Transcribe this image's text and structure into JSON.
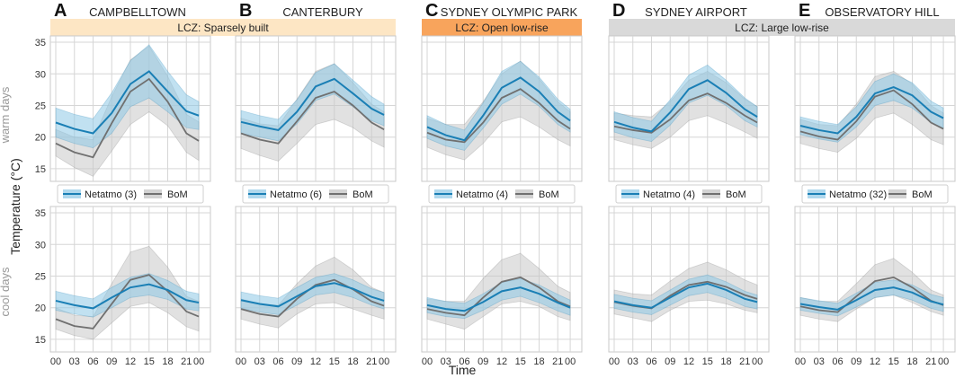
{
  "figure": {
    "y_axis_title": "Temperature (°C)",
    "x_axis_title": "Time",
    "row_labels": [
      "warm days",
      "cool days"
    ],
    "bom_label": "BoM",
    "lcz_bands": [
      {
        "label": "LCZ: Sparsely built",
        "panels": [
          0,
          1
        ],
        "color": "#fde6c4"
      },
      {
        "label": "LCZ: Open low-rise",
        "panels": [
          2
        ],
        "color": "#f8a45c"
      },
      {
        "label": "LCZ: Large low-rise",
        "panels": [
          3,
          4
        ],
        "color": "#d9d9d9"
      }
    ],
    "colors": {
      "netatmo": "#1a7fb5",
      "netatmo_band": "#8ec8e6",
      "bom": "#707070",
      "bom_band": "#c8c8c8",
      "grid": "#d6d6d6"
    }
  },
  "chart_data": [
    {
      "type": "line",
      "panel": "A",
      "title": "CAMPBELLTOWN",
      "netatmo_label": "Netatmo (3)",
      "x": [
        0,
        3,
        6,
        9,
        12,
        15,
        18,
        21,
        23
      ],
      "xticks": [
        "00",
        "03",
        "06",
        "09",
        "12",
        "15",
        "18",
        "21",
        "00"
      ],
      "warm": {
        "ylim": [
          13,
          36
        ],
        "yticks": [
          15,
          20,
          25,
          30,
          35
        ],
        "netatmo": {
          "mean": [
            22.3,
            21.3,
            20.6,
            23.8,
            28.4,
            30.4,
            27.2,
            24.1,
            23.4
          ],
          "lower": [
            20.0,
            19.0,
            18.3,
            20.6,
            24.8,
            26.2,
            24.0,
            21.5,
            21.2
          ],
          "upper": [
            24.6,
            23.6,
            22.9,
            27.0,
            32.1,
            34.6,
            30.4,
            26.7,
            25.6
          ]
        },
        "bom": {
          "mean": [
            19.0,
            17.6,
            16.8,
            22.2,
            27.2,
            29.2,
            25.6,
            20.6,
            19.4
          ],
          "lower": [
            17.0,
            15.2,
            13.8,
            17.8,
            22.0,
            24.0,
            21.8,
            17.6,
            16.3
          ],
          "upper": [
            21.2,
            20.0,
            19.6,
            26.4,
            32.2,
            34.4,
            29.6,
            23.6,
            22.4
          ]
        }
      },
      "cool": {
        "ylim": [
          13,
          36
        ],
        "yticks": [
          15,
          20,
          25,
          30,
          35
        ],
        "netatmo": {
          "mean": [
            21.1,
            20.4,
            19.9,
            21.6,
            23.2,
            23.7,
            22.8,
            21.2,
            20.8
          ],
          "lower": [
            19.6,
            19.0,
            18.5,
            20.0,
            21.6,
            22.0,
            21.3,
            19.8,
            19.5
          ],
          "upper": [
            22.6,
            21.9,
            21.4,
            23.2,
            24.8,
            25.4,
            24.3,
            22.6,
            22.2
          ]
        },
        "bom": {
          "mean": [
            18.2,
            17.1,
            16.7,
            20.6,
            24.4,
            25.2,
            22.6,
            19.4,
            18.6
          ],
          "lower": [
            16.6,
            15.6,
            15.0,
            17.6,
            20.2,
            20.8,
            19.2,
            17.0,
            16.3
          ],
          "upper": [
            20.0,
            18.8,
            18.6,
            23.8,
            28.8,
            29.7,
            26.4,
            21.8,
            21.0
          ]
        }
      }
    },
    {
      "type": "line",
      "panel": "B",
      "title": "CANTERBURY",
      "netatmo_label": "Netatmo (6)",
      "x": [
        0,
        3,
        6,
        9,
        12,
        15,
        18,
        21,
        23
      ],
      "xticks": [
        "00",
        "03",
        "06",
        "09",
        "12",
        "15",
        "18",
        "21",
        "00"
      ],
      "warm": {
        "ylim": [
          13,
          36
        ],
        "yticks": [
          15,
          20,
          25,
          30,
          35
        ],
        "netatmo": {
          "mean": [
            22.4,
            21.7,
            21.1,
            24.0,
            28.0,
            29.2,
            26.9,
            24.5,
            23.5
          ],
          "lower": [
            20.6,
            20.0,
            19.4,
            22.1,
            25.8,
            26.8,
            24.8,
            22.6,
            21.8
          ],
          "upper": [
            24.2,
            23.4,
            22.8,
            25.9,
            30.2,
            31.6,
            29.0,
            26.4,
            25.2
          ]
        },
        "bom": {
          "mean": [
            20.6,
            19.6,
            19.0,
            22.5,
            26.2,
            27.2,
            25.0,
            22.3,
            21.2
          ],
          "lower": [
            18.2,
            17.1,
            16.2,
            19.0,
            22.0,
            22.8,
            21.5,
            19.4,
            18.4
          ],
          "upper": [
            23.0,
            22.1,
            21.8,
            26.0,
            30.4,
            31.6,
            28.6,
            25.2,
            24.0
          ]
        }
      },
      "cool": {
        "ylim": [
          13,
          36
        ],
        "yticks": [
          15,
          20,
          25,
          30,
          35
        ],
        "netatmo": {
          "mean": [
            21.2,
            20.6,
            20.2,
            21.8,
            23.4,
            23.9,
            23.0,
            21.7,
            21.1
          ],
          "lower": [
            19.9,
            19.3,
            18.9,
            20.4,
            22.0,
            22.4,
            21.6,
            20.4,
            19.8
          ],
          "upper": [
            22.5,
            21.9,
            21.5,
            23.2,
            24.8,
            25.4,
            24.4,
            23.0,
            22.4
          ]
        },
        "bom": {
          "mean": [
            19.8,
            19.0,
            18.6,
            21.4,
            23.6,
            24.4,
            22.9,
            21.0,
            20.3
          ],
          "lower": [
            18.2,
            17.4,
            16.8,
            19.0,
            20.6,
            20.8,
            19.8,
            18.8,
            18.2
          ],
          "upper": [
            21.4,
            20.6,
            20.4,
            23.8,
            26.6,
            28.0,
            26.0,
            23.2,
            22.4
          ]
        }
      }
    },
    {
      "type": "line",
      "panel": "C",
      "title": "SYDNEY OLYMPIC PARK",
      "netatmo_label": "Netatmo (4)",
      "x": [
        0,
        3,
        6,
        9,
        12,
        15,
        18,
        21,
        23
      ],
      "xticks": [
        "00",
        "03",
        "06",
        "09",
        "12",
        "15",
        "18",
        "21",
        "00"
      ],
      "warm": {
        "ylim": [
          13,
          36
        ],
        "yticks": [
          15,
          20,
          25,
          30,
          35
        ],
        "netatmo": {
          "mean": [
            21.6,
            20.3,
            19.5,
            23.4,
            27.8,
            29.4,
            27.2,
            24.0,
            22.6
          ],
          "lower": [
            19.8,
            18.6,
            17.9,
            21.4,
            25.2,
            26.8,
            24.9,
            22.0,
            20.8
          ],
          "upper": [
            23.4,
            22.0,
            21.1,
            25.4,
            30.4,
            32.0,
            29.5,
            26.0,
            24.4
          ]
        },
        "bom": {
          "mean": [
            20.7,
            19.6,
            19.2,
            22.3,
            26.2,
            27.6,
            25.4,
            22.6,
            21.3
          ],
          "lower": [
            18.4,
            17.2,
            16.4,
            19.0,
            22.4,
            23.2,
            21.6,
            19.6,
            18.6
          ],
          "upper": [
            23.0,
            22.0,
            22.0,
            25.6,
            30.0,
            32.0,
            29.2,
            25.6,
            24.0
          ]
        }
      },
      "cool": {
        "ylim": [
          13,
          36
        ],
        "yticks": [
          15,
          20,
          25,
          30,
          35
        ],
        "netatmo": {
          "mean": [
            20.4,
            19.8,
            19.5,
            20.9,
            22.6,
            23.2,
            22.2,
            20.8,
            20.0
          ],
          "lower": [
            19.2,
            18.6,
            18.3,
            19.6,
            21.2,
            21.8,
            20.8,
            19.5,
            18.8
          ],
          "upper": [
            21.6,
            21.0,
            20.7,
            22.2,
            24.0,
            24.6,
            23.6,
            22.1,
            21.2
          ]
        },
        "bom": {
          "mean": [
            19.8,
            19.2,
            18.8,
            21.6,
            24.1,
            24.8,
            23.2,
            21.0,
            20.2
          ],
          "lower": [
            18.2,
            17.4,
            16.6,
            18.6,
            20.6,
            21.0,
            20.2,
            18.6,
            18.0
          ],
          "upper": [
            21.4,
            21.0,
            21.0,
            24.6,
            27.6,
            28.6,
            26.2,
            23.4,
            22.4
          ]
        }
      }
    },
    {
      "type": "line",
      "panel": "D",
      "title": "SYDNEY AIRPORT",
      "netatmo_label": "Netatmo (4)",
      "x": [
        0,
        3,
        6,
        9,
        12,
        15,
        18,
        21,
        23
      ],
      "xticks": [
        "00",
        "03",
        "06",
        "09",
        "12",
        "15",
        "18",
        "21",
        "00"
      ],
      "warm": {
        "ylim": [
          13,
          36
        ],
        "yticks": [
          15,
          20,
          25,
          30,
          35
        ],
        "netatmo": {
          "mean": [
            22.4,
            21.5,
            20.9,
            23.9,
            27.6,
            29.0,
            27.0,
            24.4,
            23.2
          ],
          "lower": [
            20.8,
            19.9,
            19.3,
            21.9,
            25.4,
            26.6,
            25.0,
            22.6,
            21.6
          ],
          "upper": [
            24.0,
            23.1,
            22.5,
            25.9,
            29.8,
            31.4,
            29.0,
            26.2,
            24.8
          ]
        },
        "bom": {
          "mean": [
            21.7,
            21.1,
            20.7,
            22.8,
            25.8,
            26.9,
            25.4,
            23.4,
            22.3
          ],
          "lower": [
            19.6,
            18.8,
            18.2,
            20.0,
            22.6,
            23.4,
            22.2,
            20.8,
            19.8
          ],
          "upper": [
            23.8,
            23.4,
            23.2,
            25.6,
            29.0,
            30.4,
            28.6,
            26.0,
            24.8
          ]
        }
      },
      "cool": {
        "ylim": [
          13,
          36
        ],
        "yticks": [
          15,
          20,
          25,
          30,
          35
        ],
        "netatmo": {
          "mean": [
            21.0,
            20.4,
            20.0,
            21.6,
            23.2,
            23.8,
            22.8,
            21.4,
            20.9
          ],
          "lower": [
            19.9,
            19.3,
            18.9,
            20.4,
            21.9,
            22.4,
            21.5,
            20.2,
            19.8
          ],
          "upper": [
            22.1,
            21.5,
            21.1,
            22.8,
            24.5,
            25.2,
            24.1,
            22.6,
            22.0
          ]
        },
        "bom": {
          "mean": [
            20.9,
            20.3,
            19.9,
            21.9,
            23.6,
            24.1,
            23.3,
            22.0,
            21.4
          ],
          "lower": [
            19.0,
            18.4,
            17.8,
            19.6,
            21.0,
            21.2,
            20.6,
            19.6,
            19.2
          ],
          "upper": [
            22.8,
            22.2,
            22.0,
            24.2,
            26.2,
            27.2,
            26.0,
            24.4,
            23.6
          ]
        }
      }
    },
    {
      "type": "line",
      "panel": "E",
      "title": "OBSERVATORY HILL",
      "netatmo_label": "Netatmo (32)",
      "x": [
        0,
        3,
        6,
        9,
        12,
        15,
        18,
        21,
        23
      ],
      "xticks": [
        "00",
        "03",
        "06",
        "09",
        "12",
        "15",
        "18",
        "21",
        "00"
      ],
      "warm": {
        "ylim": [
          13,
          36
        ],
        "yticks": [
          15,
          20,
          25,
          30,
          35
        ],
        "netatmo": {
          "mean": [
            21.8,
            21.1,
            20.6,
            23.2,
            26.9,
            27.9,
            26.6,
            24.0,
            23.0
          ],
          "lower": [
            20.4,
            19.7,
            19.2,
            21.6,
            25.0,
            25.8,
            24.6,
            22.3,
            21.4
          ],
          "upper": [
            23.2,
            22.5,
            22.0,
            24.8,
            28.8,
            30.0,
            28.6,
            25.7,
            24.6
          ]
        },
        "bom": {
          "mean": [
            20.9,
            20.1,
            19.6,
            22.5,
            26.4,
            27.4,
            25.2,
            22.3,
            21.3
          ],
          "lower": [
            19.0,
            18.2,
            17.6,
            19.8,
            23.0,
            23.8,
            22.0,
            19.6,
            18.8
          ],
          "upper": [
            22.8,
            22.0,
            21.8,
            25.2,
            29.6,
            30.4,
            28.4,
            25.0,
            23.8
          ]
        }
      },
      "cool": {
        "ylim": [
          13,
          36
        ],
        "yticks": [
          15,
          20,
          25,
          30,
          35
        ],
        "netatmo": {
          "mean": [
            20.6,
            20.1,
            19.7,
            21.2,
            22.8,
            23.2,
            22.4,
            21.0,
            20.5
          ],
          "lower": [
            19.6,
            19.1,
            18.7,
            20.1,
            21.6,
            22.0,
            21.2,
            19.9,
            19.4
          ],
          "upper": [
            21.6,
            21.1,
            20.7,
            22.3,
            24.0,
            24.4,
            23.6,
            22.1,
            21.6
          ]
        },
        "bom": {
          "mean": [
            20.2,
            19.6,
            19.3,
            21.8,
            24.2,
            24.8,
            23.2,
            21.1,
            20.4
          ],
          "lower": [
            18.8,
            18.2,
            17.8,
            19.8,
            21.6,
            22.0,
            20.8,
            19.4,
            18.8
          ],
          "upper": [
            21.6,
            21.0,
            21.0,
            23.8,
            26.8,
            27.8,
            25.6,
            22.8,
            22.0
          ]
        }
      }
    }
  ]
}
